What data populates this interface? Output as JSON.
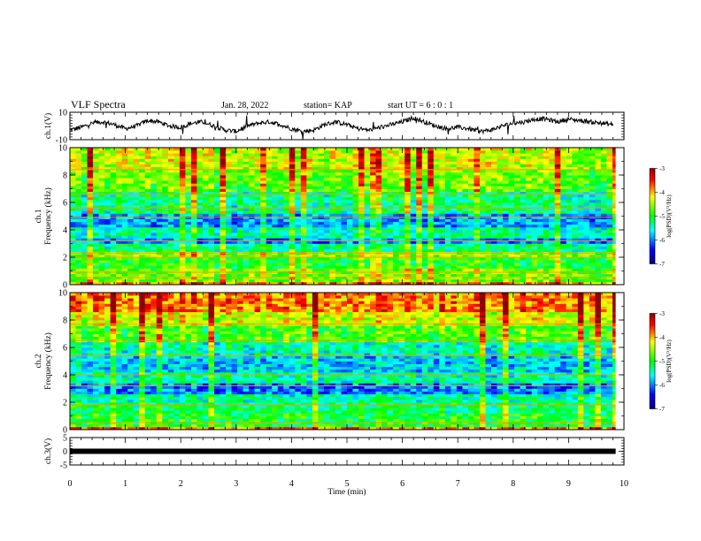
{
  "header": {
    "title": "VLF Spectra",
    "date": "Jan. 28, 2022",
    "station": "station= KAP",
    "start_ut": "start  UT  =   6  : 0  : 1"
  },
  "chart_data": [
    {
      "type": "line",
      "name": "ch1-waveform",
      "ylabel": "ch.1(V)",
      "ylim": [
        -10,
        10
      ],
      "yticks": [
        "10",
        "-10"
      ],
      "xlim": [
        0,
        10
      ],
      "x": [
        0.0,
        0.2,
        0.4,
        0.6,
        0.8,
        1.0,
        1.2,
        1.4,
        1.6,
        1.8,
        2.0,
        2.2,
        2.4,
        2.6,
        2.8,
        3.0,
        3.2,
        3.4,
        3.6,
        3.8,
        4.0,
        4.2,
        4.4,
        4.6,
        4.8,
        5.0,
        5.2,
        5.4,
        5.6,
        5.8,
        6.0,
        6.2,
        6.4,
        6.6,
        6.8,
        7.0,
        7.2,
        7.4,
        7.6,
        7.8,
        8.0,
        8.2,
        8.4,
        8.6,
        8.8,
        9.0,
        9.2,
        9.4,
        9.6,
        9.8
      ],
      "y": [
        -3,
        -1,
        2,
        3,
        1,
        -2,
        0,
        4,
        3,
        0,
        -1,
        2,
        3,
        0,
        -3,
        -4,
        0,
        2,
        3,
        1,
        -2,
        -4,
        -3,
        1,
        3,
        1,
        -2,
        -3,
        -1,
        1,
        3,
        6,
        3,
        0,
        -2,
        -1,
        -2,
        -4,
        -3,
        0,
        2,
        3,
        5,
        5,
        3,
        5,
        4,
        3,
        2,
        1
      ]
    },
    {
      "type": "heatmap",
      "name": "ch1-spectrogram",
      "ylabel": "ch.1\nFrequency (kHz)",
      "ylim": [
        0,
        10
      ],
      "xlim": [
        0,
        10
      ],
      "yticks": [
        "0",
        "2",
        "4",
        "6",
        "8",
        "10"
      ],
      "colorbar": {
        "label": "log(PSD)(V²/Hz)",
        "range": [
          -7,
          -3
        ],
        "ticks": [
          "-3",
          "-4",
          "-5",
          "-6",
          "-7"
        ]
      },
      "bands_khz": [
        {
          "from": 0.0,
          "to": 0.3,
          "level": -3.8
        },
        {
          "from": 0.3,
          "to": 1.3,
          "level": -4.7
        },
        {
          "from": 1.3,
          "to": 2.1,
          "level": -5.0
        },
        {
          "from": 2.1,
          "to": 2.5,
          "level": -4.6
        },
        {
          "from": 2.5,
          "to": 3.0,
          "level": -5.3
        },
        {
          "from": 3.0,
          "to": 3.5,
          "level": -6.0
        },
        {
          "from": 3.5,
          "to": 4.2,
          "level": -5.4
        },
        {
          "from": 4.2,
          "to": 5.3,
          "level": -5.9
        },
        {
          "from": 5.3,
          "to": 6.8,
          "level": -5.3
        },
        {
          "from": 6.8,
          "to": 7.5,
          "level": -4.8
        },
        {
          "from": 7.5,
          "to": 8.5,
          "level": -4.7
        },
        {
          "from": 8.5,
          "to": 10.0,
          "level": -4.4
        }
      ],
      "lines_khz": [
        0.5,
        0.9,
        2.0,
        2.3,
        3.2,
        4.9,
        5.6,
        6.6,
        8.4
      ]
    },
    {
      "type": "heatmap",
      "name": "ch2-spectrogram",
      "ylabel": "ch.2\nFrequency (kHz)",
      "ylim": [
        0,
        10
      ],
      "xlim": [
        0,
        10
      ],
      "yticks": [
        "0",
        "2",
        "4",
        "6",
        "8",
        "10"
      ],
      "colorbar": {
        "label": "log(PSD)(V²/Hz)",
        "range": [
          -7,
          -3
        ],
        "ticks": [
          "-3",
          "-4",
          "-5",
          "-6",
          "-7"
        ]
      },
      "bands_khz": [
        {
          "from": 0.0,
          "to": 0.3,
          "level": -3.8
        },
        {
          "from": 0.3,
          "to": 1.3,
          "level": -5.0
        },
        {
          "from": 1.3,
          "to": 2.1,
          "level": -5.2
        },
        {
          "from": 2.1,
          "to": 2.6,
          "level": -5.4
        },
        {
          "from": 2.6,
          "to": 3.4,
          "level": -6.0
        },
        {
          "from": 3.4,
          "to": 4.2,
          "level": -5.4
        },
        {
          "from": 4.2,
          "to": 5.5,
          "level": -5.7
        },
        {
          "from": 5.5,
          "to": 6.5,
          "level": -5.4
        },
        {
          "from": 6.5,
          "to": 7.6,
          "level": -4.8
        },
        {
          "from": 7.6,
          "to": 8.6,
          "level": -4.3
        },
        {
          "from": 8.6,
          "to": 10.0,
          "level": -3.8
        }
      ],
      "lines_khz": [
        0.5,
        1.8,
        3.2,
        4.0,
        5.4,
        6.5,
        7.7
      ]
    },
    {
      "type": "line",
      "name": "ch3-waveform",
      "ylabel": "ch.3(V)",
      "ylim": [
        -5,
        5
      ],
      "yticks": [
        "5",
        "0",
        "-5"
      ],
      "xlim": [
        0,
        10
      ],
      "x": [
        0,
        9.85
      ],
      "y": [
        0,
        0
      ],
      "xlabel": "Time  (min)",
      "xticks": [
        "0",
        "1",
        "2",
        "3",
        "4",
        "5",
        "6",
        "7",
        "8",
        "9",
        "10"
      ]
    }
  ],
  "colors": {
    "colormap": [
      "#00008f",
      "#0000ff",
      "#00ffff",
      "#00ff00",
      "#ffff00",
      "#ff0000",
      "#800000"
    ],
    "trace": "#000000"
  }
}
